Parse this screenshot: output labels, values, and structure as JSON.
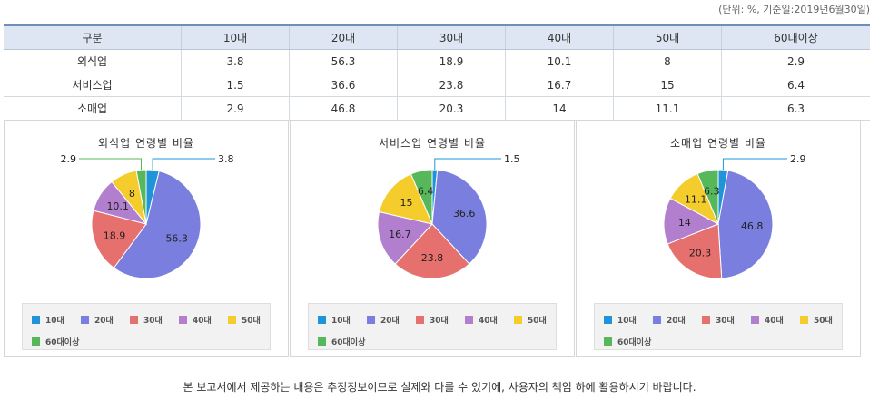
{
  "unit_note": "(단위: %, 기준일:2019년6월30일)",
  "table": {
    "headers": [
      "구분",
      "10대",
      "20대",
      "30대",
      "40대",
      "50대",
      "60대이상"
    ],
    "rows": [
      [
        "외식업",
        "3.8",
        "56.3",
        "18.9",
        "10.1",
        "8",
        "2.9"
      ],
      [
        "서비스업",
        "1.5",
        "36.6",
        "23.8",
        "16.7",
        "15",
        "6.4"
      ],
      [
        "소매업",
        "2.9",
        "46.8",
        "20.3",
        "14",
        "11.1",
        "6.3"
      ]
    ]
  },
  "colors": {
    "10대": "#1f94d8",
    "20대": "#7a7fdf",
    "30대": "#e5706e",
    "40대": "#b27fcf",
    "50대": "#f4cc2c",
    "60대이상": "#56b85a"
  },
  "chart_data": [
    {
      "type": "pie",
      "title": "외식업 연령별 비율",
      "categories": [
        "10대",
        "20대",
        "30대",
        "40대",
        "50대",
        "60대이상"
      ],
      "values": [
        3.8,
        56.3,
        18.9,
        10.1,
        8,
        2.9
      ],
      "legend": "bottom"
    },
    {
      "type": "pie",
      "title": "서비스업 연령별 비율",
      "categories": [
        "10대",
        "20대",
        "30대",
        "40대",
        "50대",
        "60대이상"
      ],
      "values": [
        1.5,
        36.6,
        23.8,
        16.7,
        15,
        6.4
      ],
      "legend": "bottom"
    },
    {
      "type": "pie",
      "title": "소매업 연령별 비율",
      "categories": [
        "10대",
        "20대",
        "30대",
        "40대",
        "50대",
        "60대이상"
      ],
      "values": [
        2.9,
        46.8,
        20.3,
        14,
        11.1,
        6.3
      ],
      "legend": "bottom"
    }
  ],
  "footer": "본 보고서에서 제공하는 내용은 추정정보이므로 실제와 다를 수 있기에, 사용자의 책임 하에 활용하시기 바랍니다."
}
